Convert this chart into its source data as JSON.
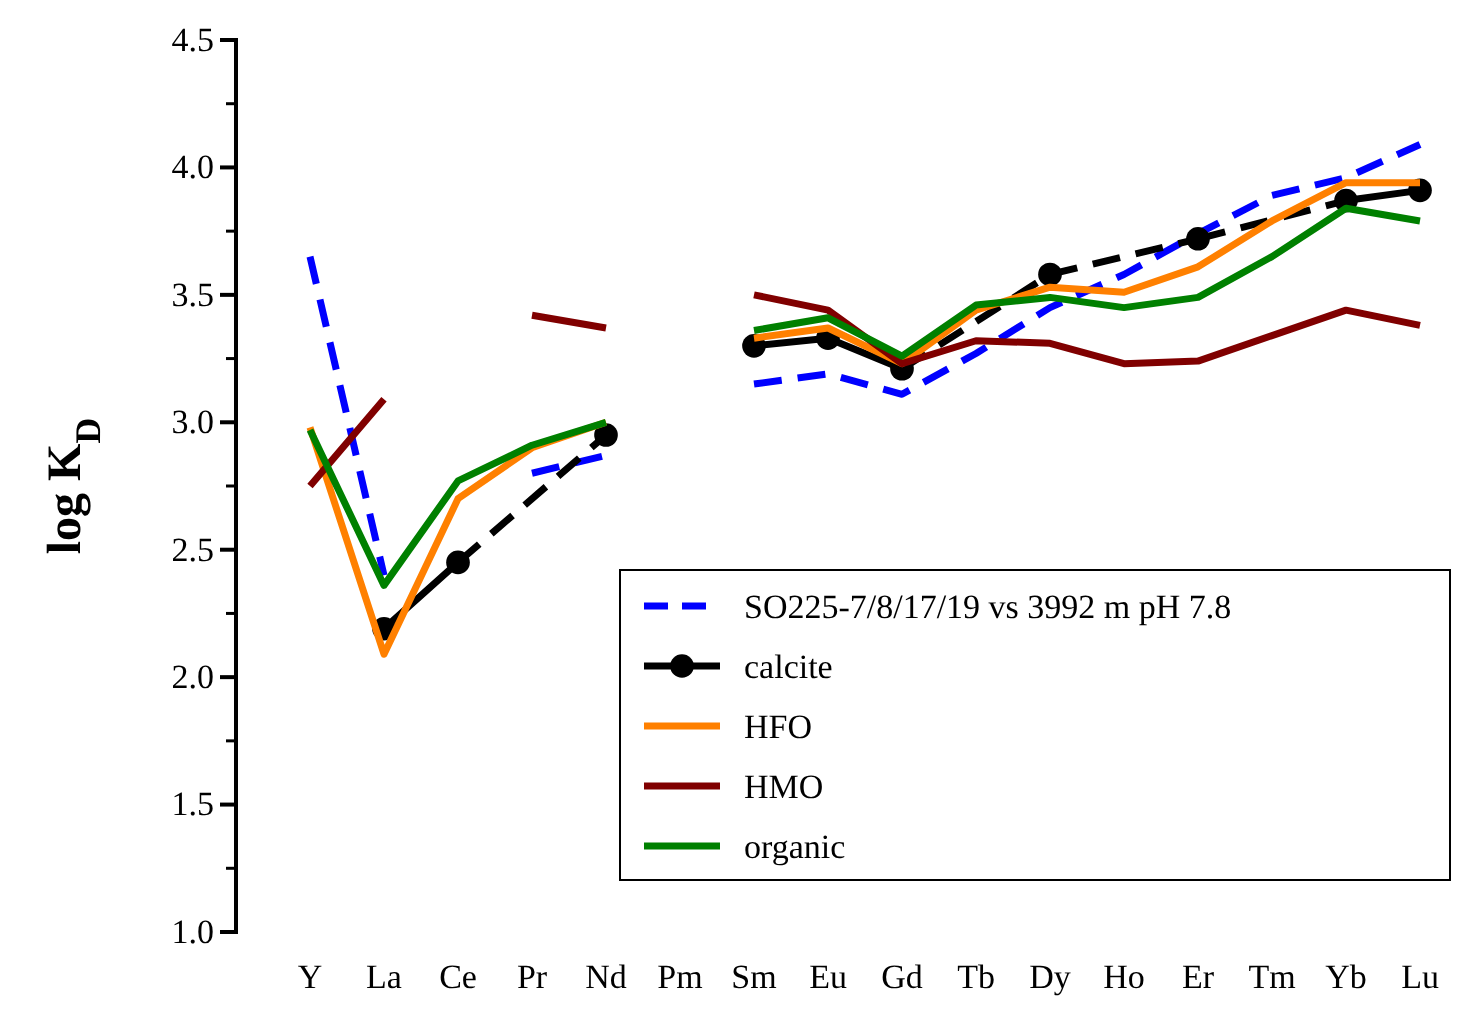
{
  "chart_data": {
    "type": "line",
    "ylabel": "log K$_{D}$",
    "categories": [
      "Y",
      "La",
      "Ce",
      "Pr",
      "Nd",
      "Pm",
      "Sm",
      "Eu",
      "Gd",
      "Tb",
      "Dy",
      "Ho",
      "Er",
      "Tm",
      "Yb",
      "Lu"
    ],
    "ylim": [
      1.0,
      4.5
    ],
    "yticks": [
      {
        "value": 1.0,
        "label": "1.0"
      },
      {
        "value": 1.5,
        "label": "1.5"
      },
      {
        "value": 2.0,
        "label": "2.0"
      },
      {
        "value": 2.5,
        "label": "2.5"
      },
      {
        "value": 3.0,
        "label": "3.0"
      },
      {
        "value": 3.5,
        "label": "3.5"
      },
      {
        "value": 4.0,
        "label": "4.0"
      },
      {
        "value": 4.5,
        "label": "4.5"
      }
    ],
    "legend": "bottom right",
    "grid": false,
    "series": [
      {
        "name": "SO225-7/8/17/19 vs 3992 m pH 7.8",
        "color": "#0000ff",
        "line_style": "dashed",
        "values": [
          3.65,
          2.4,
          null,
          2.8,
          2.87,
          null,
          3.15,
          3.19,
          3.11,
          3.27,
          3.45,
          3.58,
          3.74,
          3.89,
          3.96,
          4.09
        ]
      },
      {
        "name": "calcite",
        "color": "#000000",
        "marker": "circle",
        "values": [
          null,
          2.19,
          2.45,
          null,
          2.95,
          null,
          3.3,
          3.33,
          3.21,
          null,
          3.58,
          null,
          3.72,
          null,
          3.87,
          3.91
        ]
      },
      {
        "name": "HFO",
        "color": "#ff8000",
        "values": [
          2.98,
          2.09,
          2.7,
          2.9,
          3.0,
          null,
          3.33,
          3.37,
          3.23,
          3.44,
          3.53,
          3.51,
          3.61,
          3.79,
          3.94,
          3.94
        ]
      },
      {
        "name": "HMO",
        "color": "#800000",
        "values": [
          2.75,
          3.09,
          null,
          3.42,
          3.37,
          null,
          3.5,
          3.44,
          3.23,
          3.32,
          3.31,
          3.23,
          3.24,
          3.34,
          3.44,
          3.38
        ]
      },
      {
        "name": "organic",
        "color": "#008000",
        "values": [
          2.97,
          2.36,
          2.77,
          2.91,
          3.0,
          null,
          3.36,
          3.41,
          3.26,
          3.46,
          3.49,
          3.45,
          3.49,
          3.65,
          3.84,
          3.79
        ]
      }
    ]
  }
}
